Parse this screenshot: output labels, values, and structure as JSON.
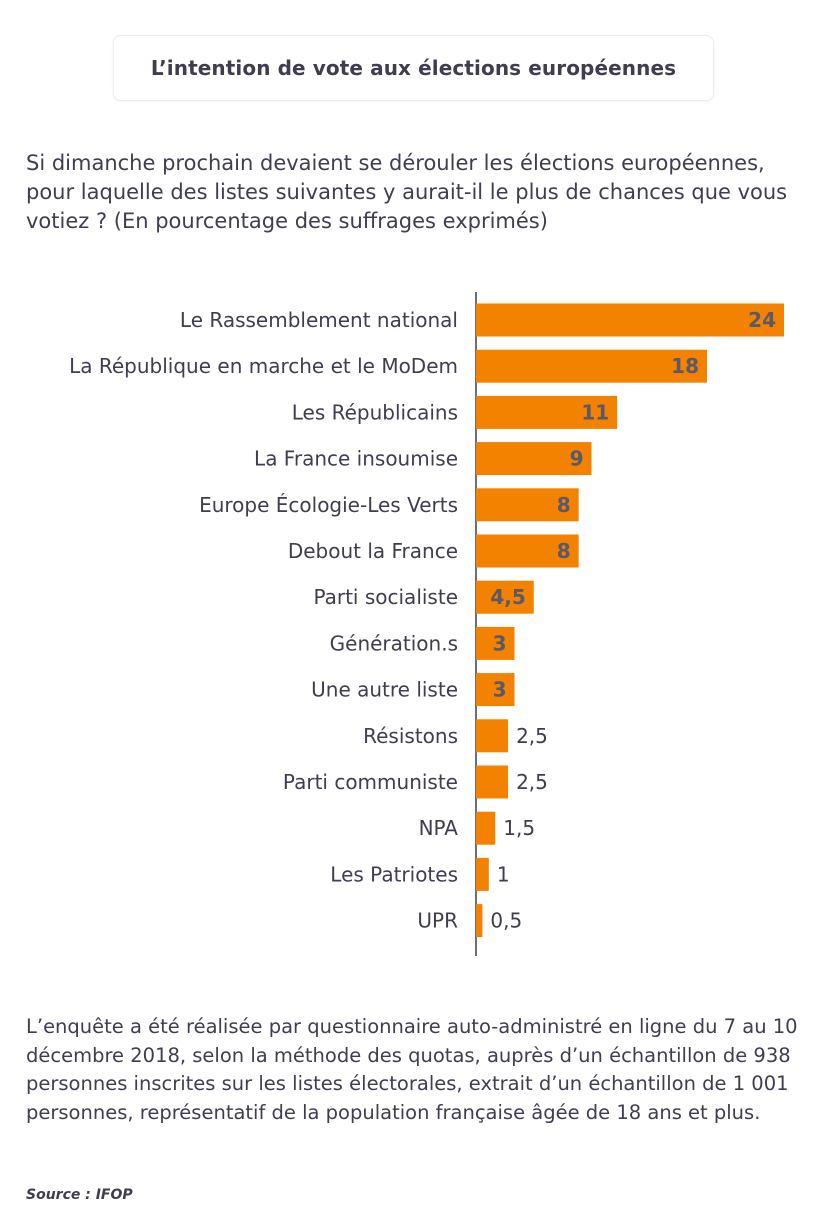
{
  "title": "L’intention de vote aux élections européennes",
  "question": "Si dimanche prochain devaient se dérouler les élections européennes, pour laquelle des listes suivantes y aurait-il le plus de chances que vous votiez ?  (En pourcentage des suffrages exprimés)",
  "footnote": "L’enquête a été réalisée par questionnaire auto-administré en ligne du 7 au 10 décembre 2018, selon la méthode des quotas, auprès d’un échantillon de 938 personnes inscrites sur les listes électorales, extrait d’un échantillon de 1 001 personnes, représentatif de la population française âgée de 18 ans et plus.",
  "source": "Source : IFOP",
  "colors": {
    "bar": "#f28200",
    "text": "#3f3d4f",
    "label_inside": "#5a5869",
    "axis": "#3f3d4f"
  },
  "chart_data": {
    "type": "bar",
    "orientation": "horizontal",
    "categories": [
      "Le Rassemblement national",
      "La République en marche et le MoDem",
      "Les Républicains",
      "La France insoumise",
      "Europe Écologie-Les Verts",
      "Debout la France",
      "Parti socialiste",
      "Génération.s",
      "Une autre liste",
      "Résistons",
      "Parti communiste",
      "NPA",
      "Les Patriotes",
      "UPR"
    ],
    "values": [
      24,
      18,
      11,
      9,
      8,
      8,
      4.5,
      3,
      3,
      2.5,
      2.5,
      1.5,
      1,
      0.5
    ],
    "value_labels": [
      "24",
      "18",
      "11",
      "9",
      "8",
      "8",
      "4,5",
      "3",
      "3",
      "2,5",
      "2,5",
      "1,5",
      "1",
      "0,5"
    ],
    "xlim": [
      0,
      24
    ],
    "grid": false,
    "legend": "none"
  }
}
